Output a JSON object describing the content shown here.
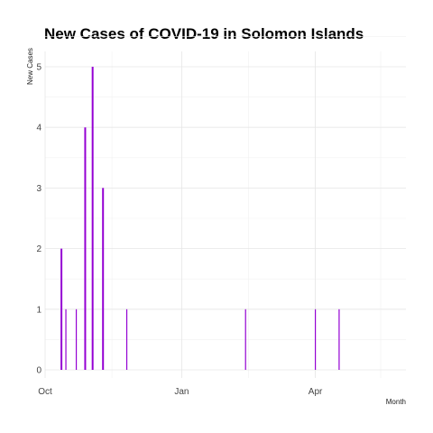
{
  "chart_data": {
    "type": "bar",
    "title": "New Cases of COVID-19 in Solomon Islands",
    "xlabel": "Month",
    "ylabel": "New Cases",
    "ylim": [
      0,
      5.5
    ],
    "y_ticks": [
      0,
      1,
      2,
      3,
      4,
      5
    ],
    "x_range": [
      "2020-10-01",
      "2021-06-01"
    ],
    "x_ticks": [
      {
        "date": "2020-10-01",
        "label": "Oct"
      },
      {
        "date": "2021-01-01",
        "label": "Jan"
      },
      {
        "date": "2021-04-01",
        "label": "Apr"
      }
    ],
    "x_minor_ticks": [
      "2020-11-15",
      "2021-02-15",
      "2021-05-15"
    ],
    "grid": true,
    "bar_color": "#9400d3",
    "series": [
      {
        "x": [
          "2020-10-12",
          "2020-10-15",
          "2020-10-22",
          "2020-10-28",
          "2020-11-02",
          "2020-11-09",
          "2020-11-25",
          "2021-02-13",
          "2021-04-01",
          "2021-04-17"
        ],
        "values": [
          2,
          1,
          1,
          4,
          5,
          3,
          1,
          1,
          1,
          1
        ]
      }
    ]
  }
}
